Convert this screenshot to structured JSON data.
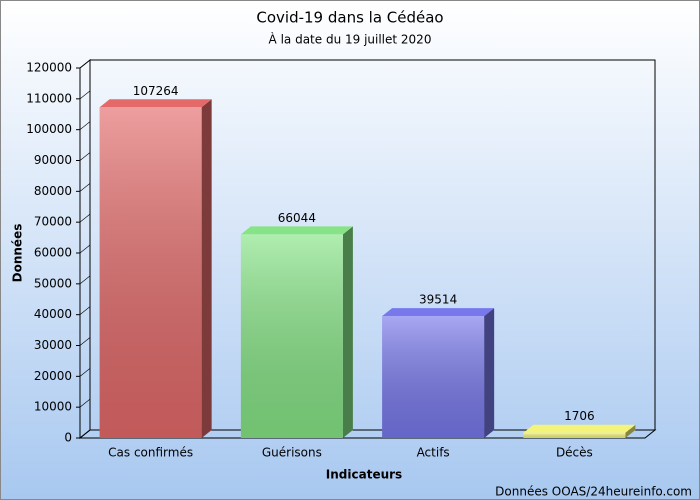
{
  "chart_data": {
    "type": "bar3d",
    "title": "Covid-19 dans la Cédéao",
    "subtitle": "À la date du 19 juillet 2020",
    "x_label": "Indicateurs",
    "y_label": "Données",
    "source": "Données OOAS/24heureinfo.com",
    "categories": [
      "Cas confirmés",
      "Guérisons",
      "Actifs",
      "Décès"
    ],
    "values": [
      107264,
      66044,
      39514,
      1706
    ],
    "colors": [
      "#e46a6a",
      "#86e486",
      "#7878ec",
      "#f4f47a"
    ],
    "ylim": [
      0,
      120000
    ],
    "yticks": [
      0,
      10000,
      20000,
      30000,
      40000,
      50000,
      60000,
      70000,
      80000,
      90000,
      100000,
      110000,
      120000
    ]
  }
}
